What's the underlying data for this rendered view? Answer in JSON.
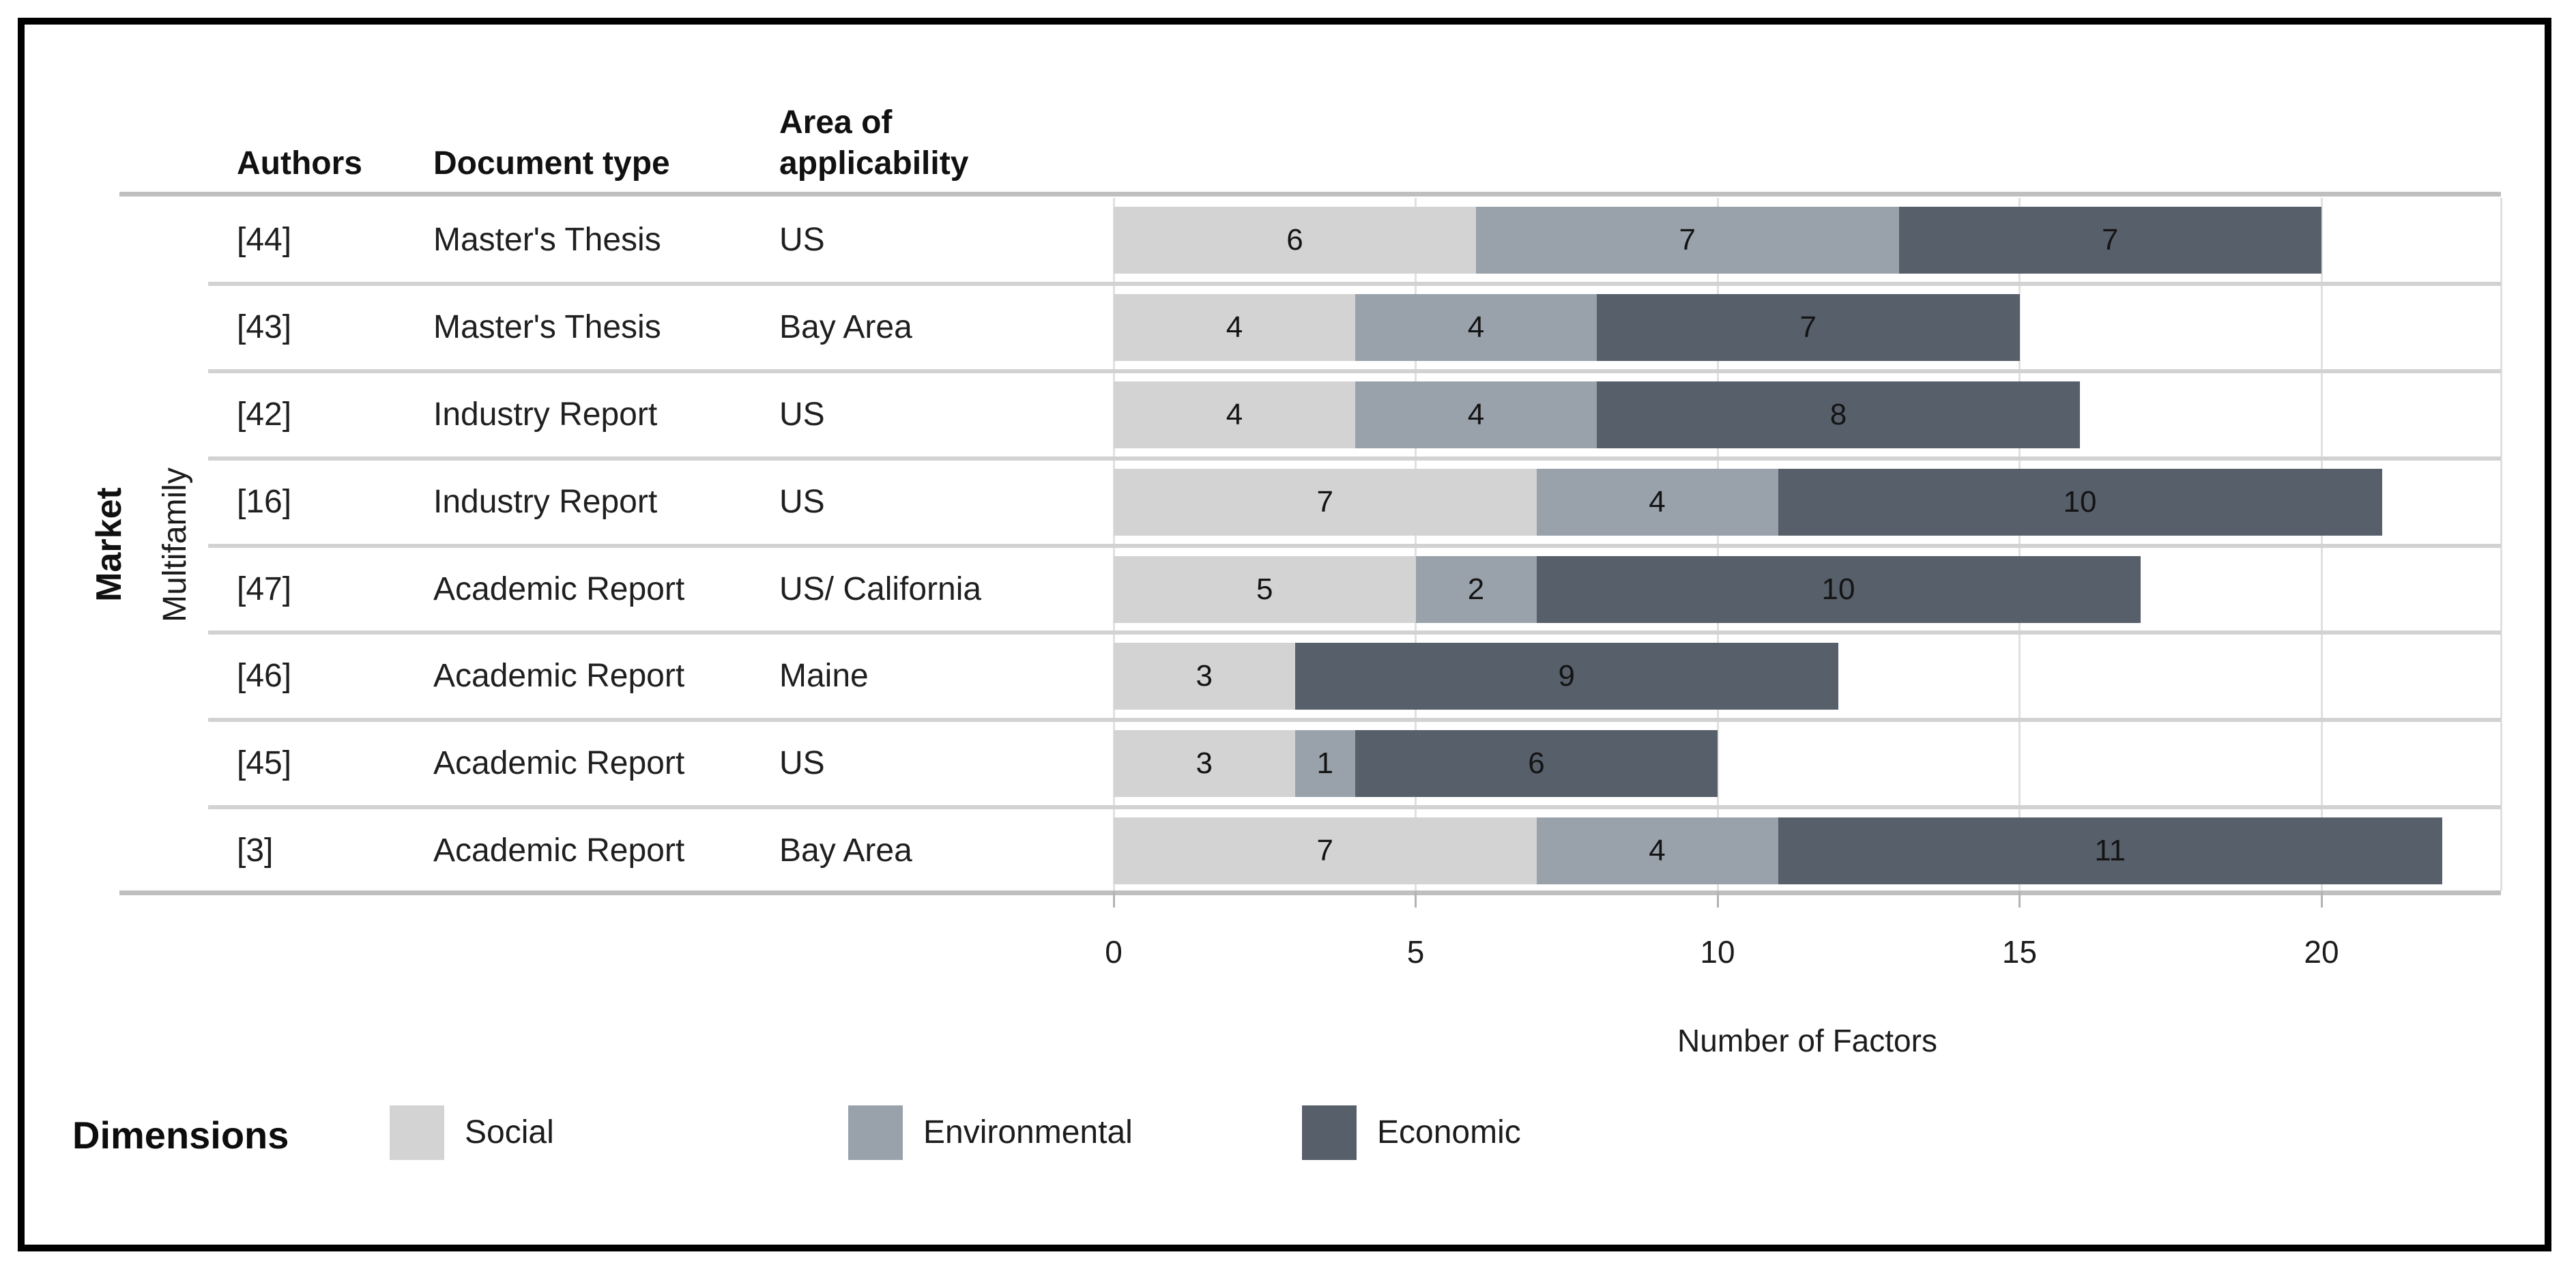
{
  "figure": {
    "market_label": "Market",
    "group_label": "Multifamily"
  },
  "table_headers": {
    "authors": "Authors",
    "doc_type": "Document type",
    "area": "Area of applicability"
  },
  "chart_data": {
    "type": "bar",
    "orientation": "horizontal",
    "stacked": true,
    "title": "",
    "xlabel": "Number of Factors",
    "ylabel": "Market / Multifamily",
    "x_ticks": [
      0,
      5,
      10,
      15,
      20
    ],
    "xlim": [
      0,
      23
    ],
    "grid": true,
    "legend_position": "bottom",
    "series_names": [
      "Social",
      "Environmental",
      "Economic"
    ],
    "series_colors": [
      "#d3d3d3",
      "#99a2ab",
      "#575f6a"
    ],
    "rows": [
      {
        "author": "[44]",
        "doc_type": "Master's Thesis",
        "area": "US",
        "values": [
          6,
          7,
          7
        ]
      },
      {
        "author": "[43]",
        "doc_type": "Master's Thesis",
        "area": "Bay Area",
        "values": [
          4,
          4,
          7
        ]
      },
      {
        "author": "[42]",
        "doc_type": "Industry Report",
        "area": "US",
        "values": [
          4,
          4,
          8
        ]
      },
      {
        "author": "[16]",
        "doc_type": "Industry Report",
        "area": "US",
        "values": [
          7,
          4,
          10
        ]
      },
      {
        "author": "[47]",
        "doc_type": "Academic Report",
        "area": "US/ California",
        "values": [
          5,
          2,
          10
        ]
      },
      {
        "author": "[46]",
        "doc_type": "Academic Report",
        "area": "Maine",
        "values": [
          3,
          0,
          9
        ]
      },
      {
        "author": "[45]",
        "doc_type": "Academic Report",
        "area": "US",
        "values": [
          3,
          1,
          6
        ]
      },
      {
        "author": "[3]",
        "doc_type": "Academic Report",
        "area": "Bay Area",
        "values": [
          7,
          4,
          11
        ]
      }
    ]
  },
  "legend": {
    "title": "Dimensions",
    "items": [
      {
        "label": "Social",
        "color": "#d3d3d3"
      },
      {
        "label": "Environmental",
        "color": "#99a2ab"
      },
      {
        "label": "Economic",
        "color": "#575f6a"
      }
    ]
  }
}
